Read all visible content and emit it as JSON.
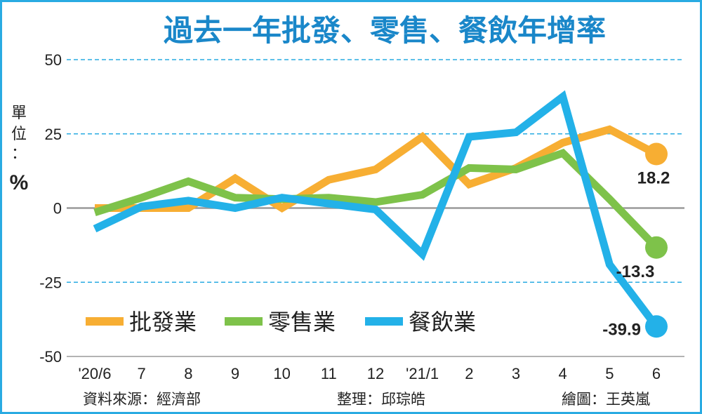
{
  "chart_data": {
    "type": "line",
    "title": "過去一年批發、零售、餐飲年增率",
    "unit_label": "單位：%",
    "unit_chars": [
      "單",
      "位",
      "："
    ],
    "unit_symbol": "%",
    "categories": [
      "'20/6",
      "7",
      "8",
      "9",
      "10",
      "11",
      "12",
      "'21/1",
      "2",
      "3",
      "4",
      "5",
      "6"
    ],
    "y_ticks": [
      "50",
      "25",
      "0",
      "-25",
      "-50"
    ],
    "ylim": [
      -50,
      50
    ],
    "dashed_grid_values": [
      50,
      25,
      -25
    ],
    "zero_line": true,
    "series": [
      {
        "name": "批發業",
        "color": "#f7ae33",
        "values": [
          0.0,
          0.0,
          0.0,
          10.0,
          0.0,
          9.5,
          13.0,
          24.0,
          8.0,
          13.5,
          22.0,
          26.5,
          18.2
        ],
        "end_label": "18.2"
      },
      {
        "name": "零售業",
        "color": "#7ec24a",
        "values": [
          -1.5,
          3.5,
          9.0,
          3.5,
          3.0,
          3.5,
          2.0,
          4.5,
          13.5,
          13.0,
          18.5,
          3.0,
          -13.3
        ],
        "end_label": "-13.3"
      },
      {
        "name": "餐飲業",
        "color": "#23b1e8",
        "values": [
          -7.0,
          0.5,
          2.5,
          0.0,
          3.5,
          1.5,
          -0.5,
          -15.5,
          24.0,
          25.5,
          37.5,
          -19.0,
          -39.9
        ],
        "end_label": "-39.9"
      }
    ],
    "legend_placement": "lower-left",
    "source": "資料來源：經濟部",
    "compiler": "整理：邱琮皓",
    "illustrator": "繪圖：王英嵐"
  },
  "colors": {
    "title": "#1a87c9",
    "grid": "#29abe2",
    "zero_line": "#9a9a9a",
    "frame": "#29abe2"
  }
}
